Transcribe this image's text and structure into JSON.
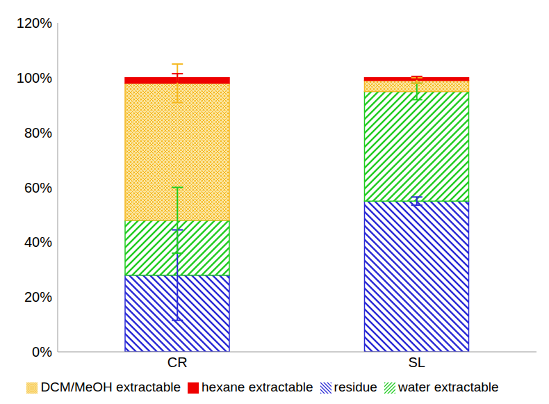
{
  "chart_data": {
    "type": "bar",
    "stacked": true,
    "legend": "bottom",
    "grid": false,
    "categories": [
      "CR",
      "SL"
    ],
    "series": [
      {
        "name": "residue",
        "color": "#2b2bd6",
        "values": [
          28,
          55
        ],
        "errors": [
          16.5,
          1.5
        ]
      },
      {
        "name": "water extractable",
        "color": "#22cc22",
        "values": [
          20,
          40
        ],
        "errors": [
          12,
          3
        ]
      },
      {
        "name": "DCM/MeOH extractable",
        "color": "#f5b820",
        "values": [
          50,
          4
        ],
        "errors": [
          7,
          1
        ]
      },
      {
        "name": "hexane extractable",
        "color": "#ee0000",
        "values": [
          2,
          1
        ],
        "errors": [
          1.5,
          0.5
        ]
      }
    ],
    "ylim": [
      0,
      120
    ],
    "yticks": [
      {
        "value": 0,
        "label": "0%"
      },
      {
        "value": 20,
        "label": "20%"
      },
      {
        "value": 40,
        "label": "40%"
      },
      {
        "value": 60,
        "label": "60%"
      },
      {
        "value": 80,
        "label": "80%"
      },
      {
        "value": 100,
        "label": "100%"
      },
      {
        "value": 120,
        "label": "120%"
      }
    ]
  }
}
